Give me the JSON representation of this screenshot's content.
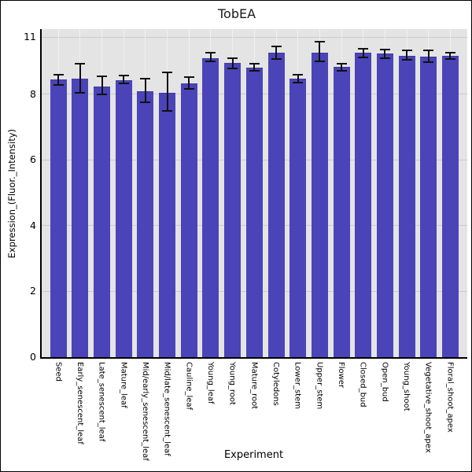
{
  "figure": {
    "background": "#ffffff",
    "border_color": "#000000"
  },
  "chart_data": {
    "type": "bar",
    "title": "TobEA",
    "xlabel": "Experiment",
    "ylabel": "Expression_(Fluor._Intensity)",
    "categories": [
      "Seed",
      "Early_senescent_leaf",
      "Late_senescent_leaf",
      "Mature_leaf",
      "Mid/early_senescent_leaf",
      "Mid/late_senescent_leaf",
      "Cauline_leaf",
      "Young_leaf",
      "Young_root",
      "Mature_root",
      "Cotyledons",
      "Lower_stem",
      "Upper_stem",
      "Flower",
      "Closed_bud",
      "Open_bud",
      "Young_shoot",
      "Vegetative_shoot_apex",
      "Floral_shoot_apex"
    ],
    "values": [
      8.44,
      8.46,
      8.24,
      8.41,
      8.08,
      8.05,
      8.32,
      9.1,
      8.94,
      8.81,
      9.26,
      8.48,
      9.25,
      8.82,
      9.25,
      9.24,
      9.17,
      9.14,
      9.16
    ],
    "error_low": [
      8.28,
      8.04,
      7.98,
      8.32,
      7.74,
      7.48,
      8.16,
      8.99,
      8.77,
      8.7,
      9.07,
      8.34,
      9.0,
      8.72,
      9.12,
      9.09,
      9.04,
      8.96,
      9.06
    ],
    "error_high": [
      8.58,
      8.92,
      8.54,
      8.57,
      8.48,
      8.65,
      8.52,
      9.26,
      9.1,
      8.93,
      9.45,
      8.6,
      9.6,
      8.92,
      9.38,
      9.36,
      9.32,
      9.33,
      9.25
    ],
    "yticks": [
      0,
      2,
      4,
      6,
      8,
      11
    ],
    "ylim": [
      0,
      10
    ],
    "grid": true,
    "legend": false,
    "bar_color": "#4a44b8",
    "bar_edge_color": "#3f3aa6",
    "errorbar_color": "#111111",
    "panel_background": "#e4e4e4",
    "hgrid_color": "#cbcbcb",
    "vgrid_color": "#f0f0f0"
  }
}
